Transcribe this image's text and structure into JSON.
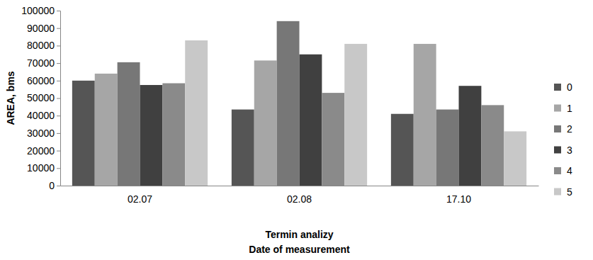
{
  "chart_data": {
    "type": "bar",
    "y_label": "AREA, bms",
    "x_label": [
      "Termin analizy",
      "Date of measurement"
    ],
    "categories": [
      "02.07",
      "02.08",
      "17.10"
    ],
    "series": [
      {
        "name": "0",
        "color": "#555555",
        "values": [
          60000,
          43500,
          41000
        ]
      },
      {
        "name": "1",
        "color": "#a6a6a6",
        "values": [
          64000,
          71500,
          81000
        ]
      },
      {
        "name": "2",
        "color": "#777777",
        "values": [
          70500,
          94000,
          43500
        ]
      },
      {
        "name": "3",
        "color": "#404040",
        "values": [
          57500,
          75000,
          57000
        ]
      },
      {
        "name": "4",
        "color": "#8a8a8a",
        "values": [
          58500,
          53000,
          46000
        ]
      },
      {
        "name": "5",
        "color": "#c8c8c8",
        "values": [
          83000,
          81000,
          31000
        ]
      }
    ],
    "ylim": [
      0,
      100000
    ],
    "yticks": [
      0,
      10000,
      20000,
      30000,
      40000,
      50000,
      60000,
      70000,
      80000,
      90000,
      100000
    ],
    "grid": false,
    "legend": "right"
  }
}
